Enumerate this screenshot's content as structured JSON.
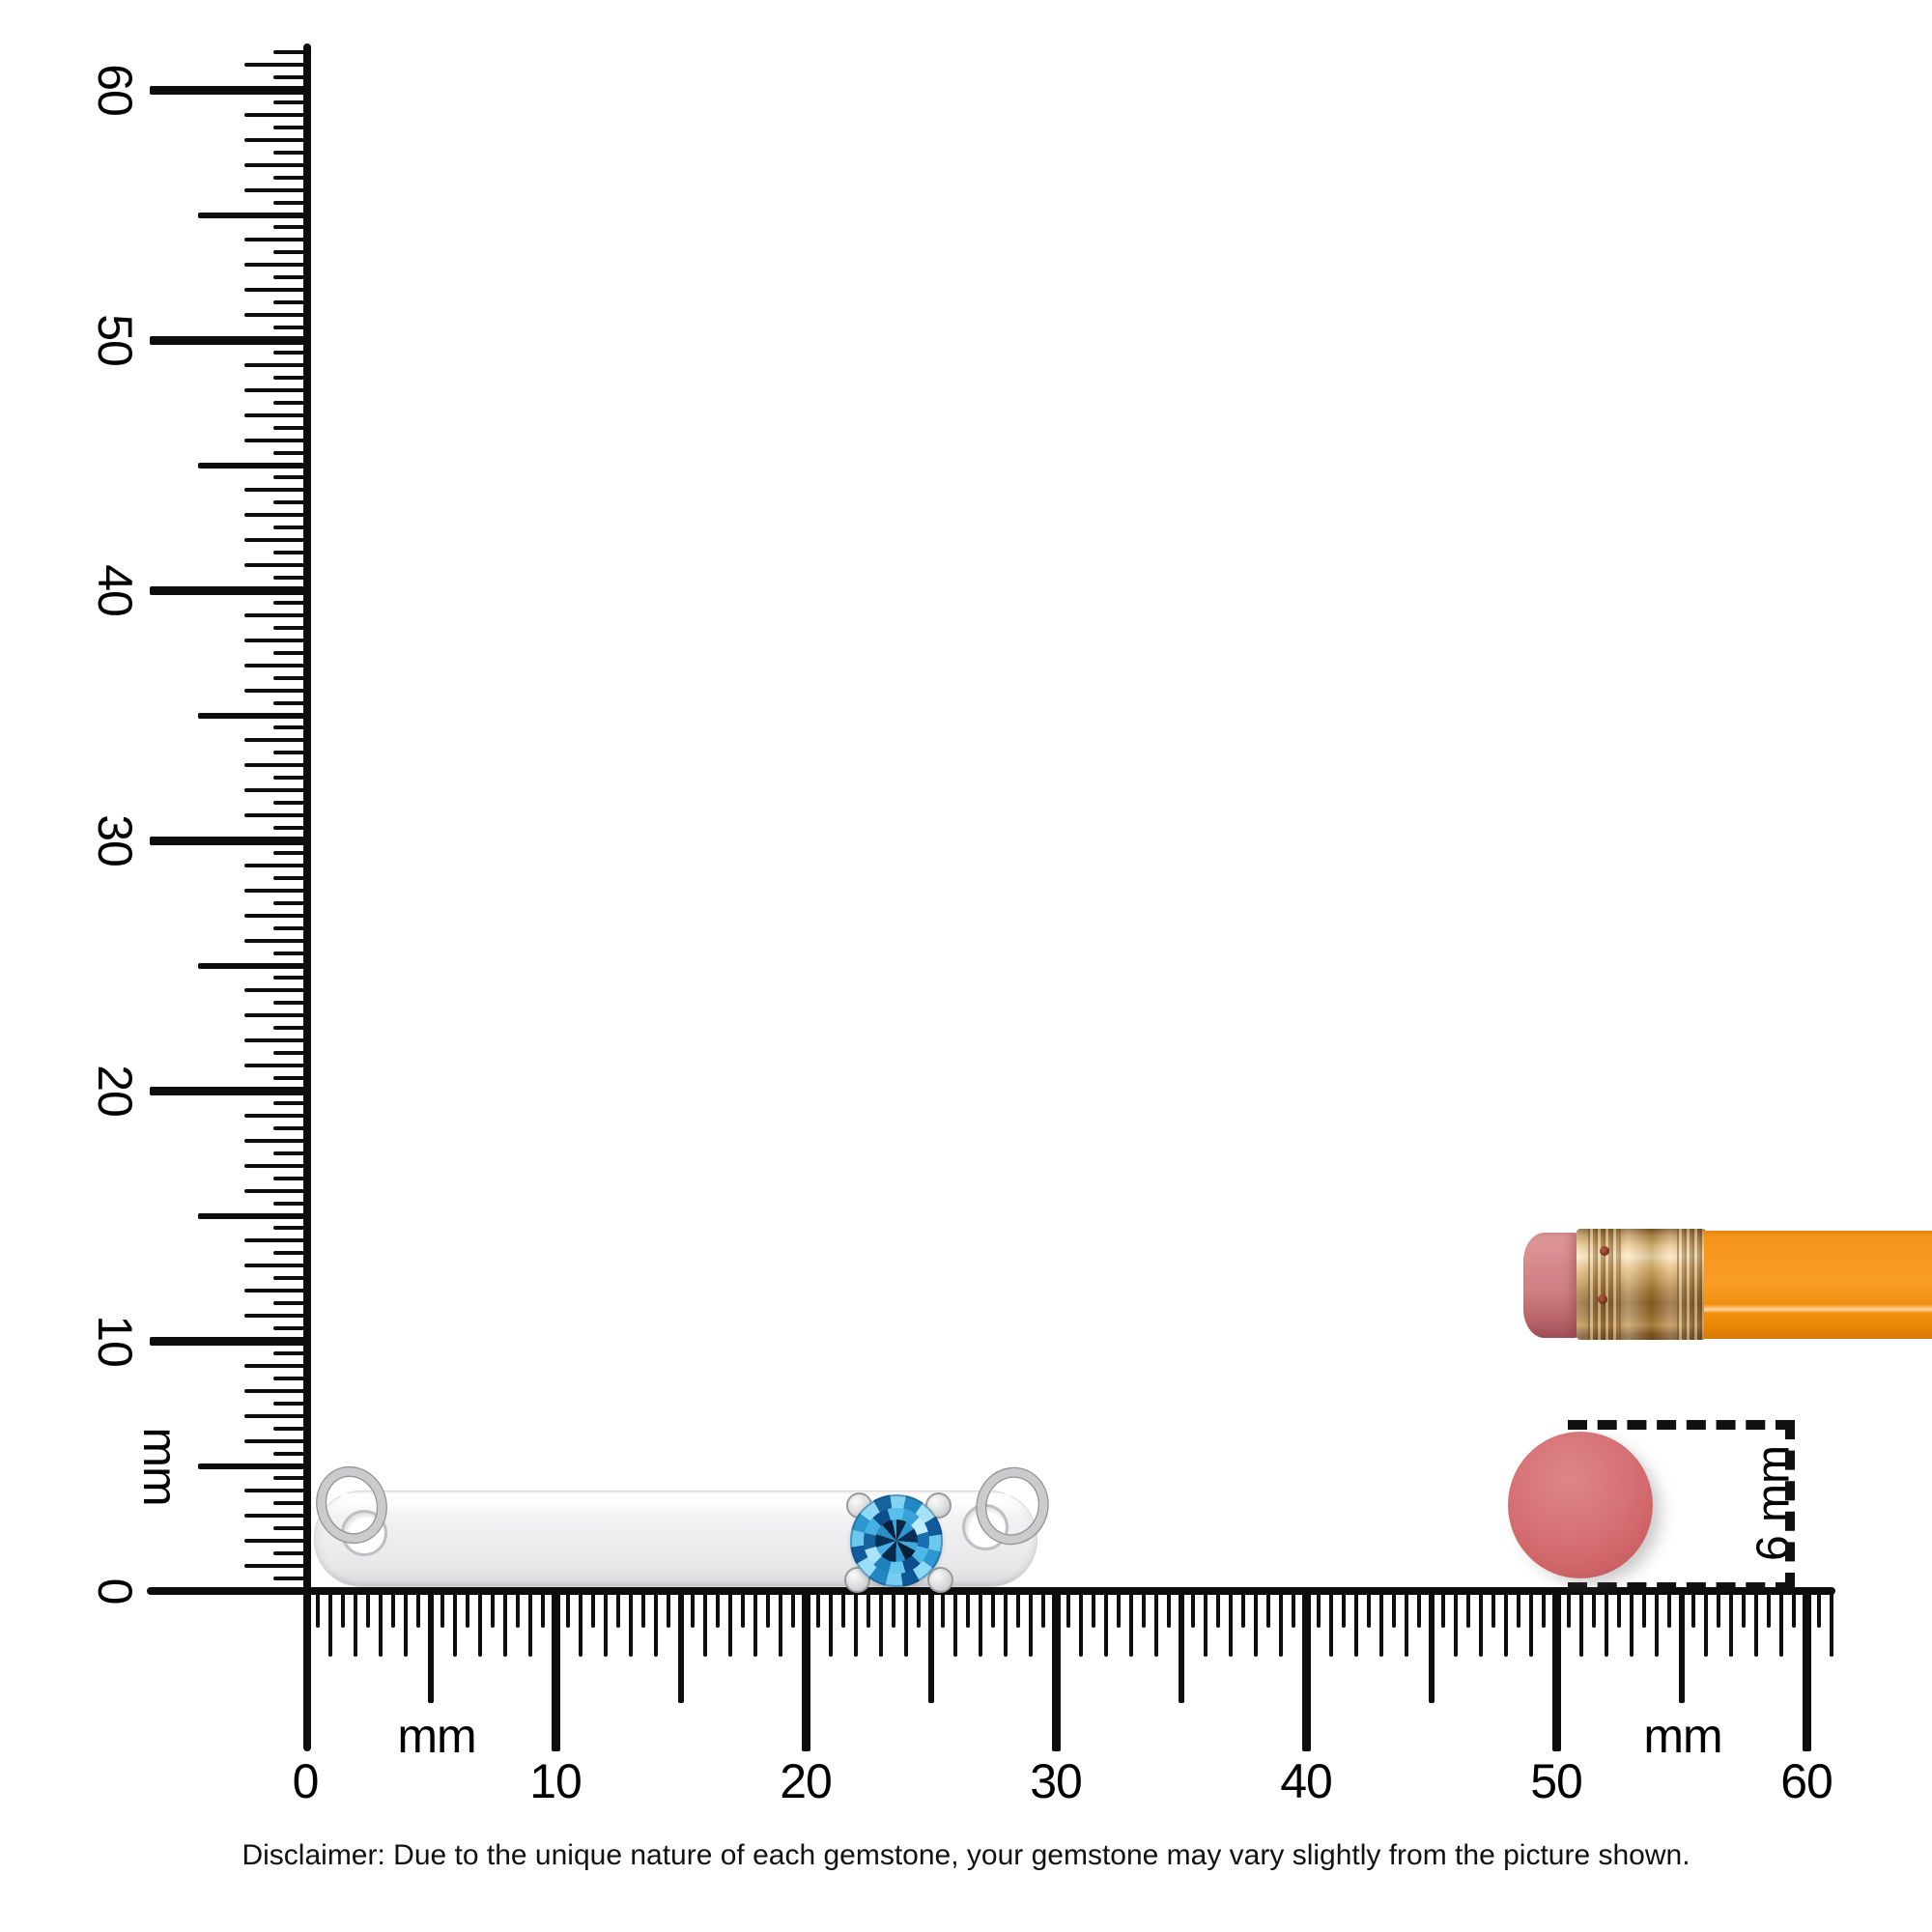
{
  "scale": {
    "mm_min": 0,
    "mm_max": 60,
    "minor_step_mm": 0.5,
    "major_step_mm": 10
  },
  "vertical_ruler": {
    "unit": "mm",
    "labels": [
      "60",
      "50",
      "40",
      "30",
      "20",
      "10",
      "0"
    ]
  },
  "horizontal_ruler": {
    "unit_left": "mm",
    "unit_right": "mm",
    "labels": [
      "0",
      "10",
      "20",
      "30",
      "40",
      "50",
      "60"
    ]
  },
  "dimension_annotation": {
    "label": "6 mm"
  },
  "disclaimer": "Disclaimer: Due to the unique nature of each gemstone, your gemstone may vary slightly from the picture shown.",
  "objects": {
    "pendant": {
      "description": "silver bar pendant with two jump rings and round blue gemstone",
      "gem_color": "#2b95cc",
      "metal_color": "#efefef"
    },
    "pencil": {
      "body_color": "#f79a20",
      "ferrule_color": "#c79b55",
      "eraser_color": "#d8898c"
    },
    "eraser_end_circle": {
      "color": "#d66a6e",
      "diameter_label": "6 mm"
    }
  }
}
